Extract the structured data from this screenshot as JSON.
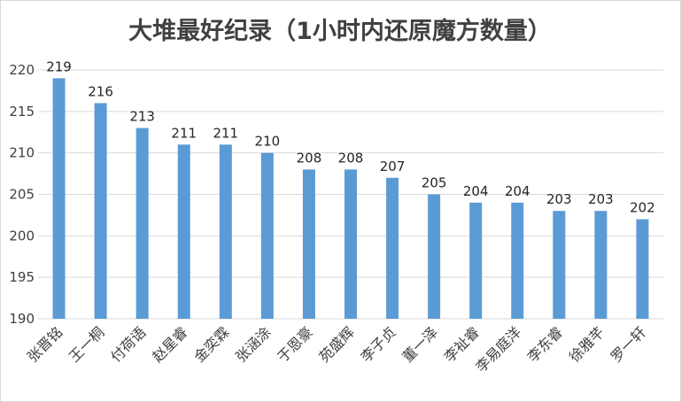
{
  "chart_data": {
    "type": "bar",
    "title": "大堆最好纪录（1小时内还原魔方数量）",
    "xlabel": "",
    "ylabel": "",
    "categories": [
      "张晋铭",
      "王一桐",
      "付荷语",
      "赵星睿",
      "金奕霖",
      "张涵涂",
      "于恩豪",
      "苑盛辉",
      "李子贞",
      "董一泽",
      "李祉睿",
      "李易庭洋",
      "李东睿",
      "徐雅芊",
      "罗一轩"
    ],
    "values": [
      219,
      216,
      213,
      211,
      211,
      210,
      208,
      208,
      207,
      205,
      204,
      204,
      203,
      203,
      202
    ],
    "ylim": [
      190,
      220
    ],
    "yticks": [
      190,
      195,
      200,
      205,
      210,
      215,
      220
    ],
    "grid": true,
    "data_labels": true,
    "legend": "none",
    "bar_color": "#5b9bd5",
    "grid_color": "#d9d9d9"
  }
}
